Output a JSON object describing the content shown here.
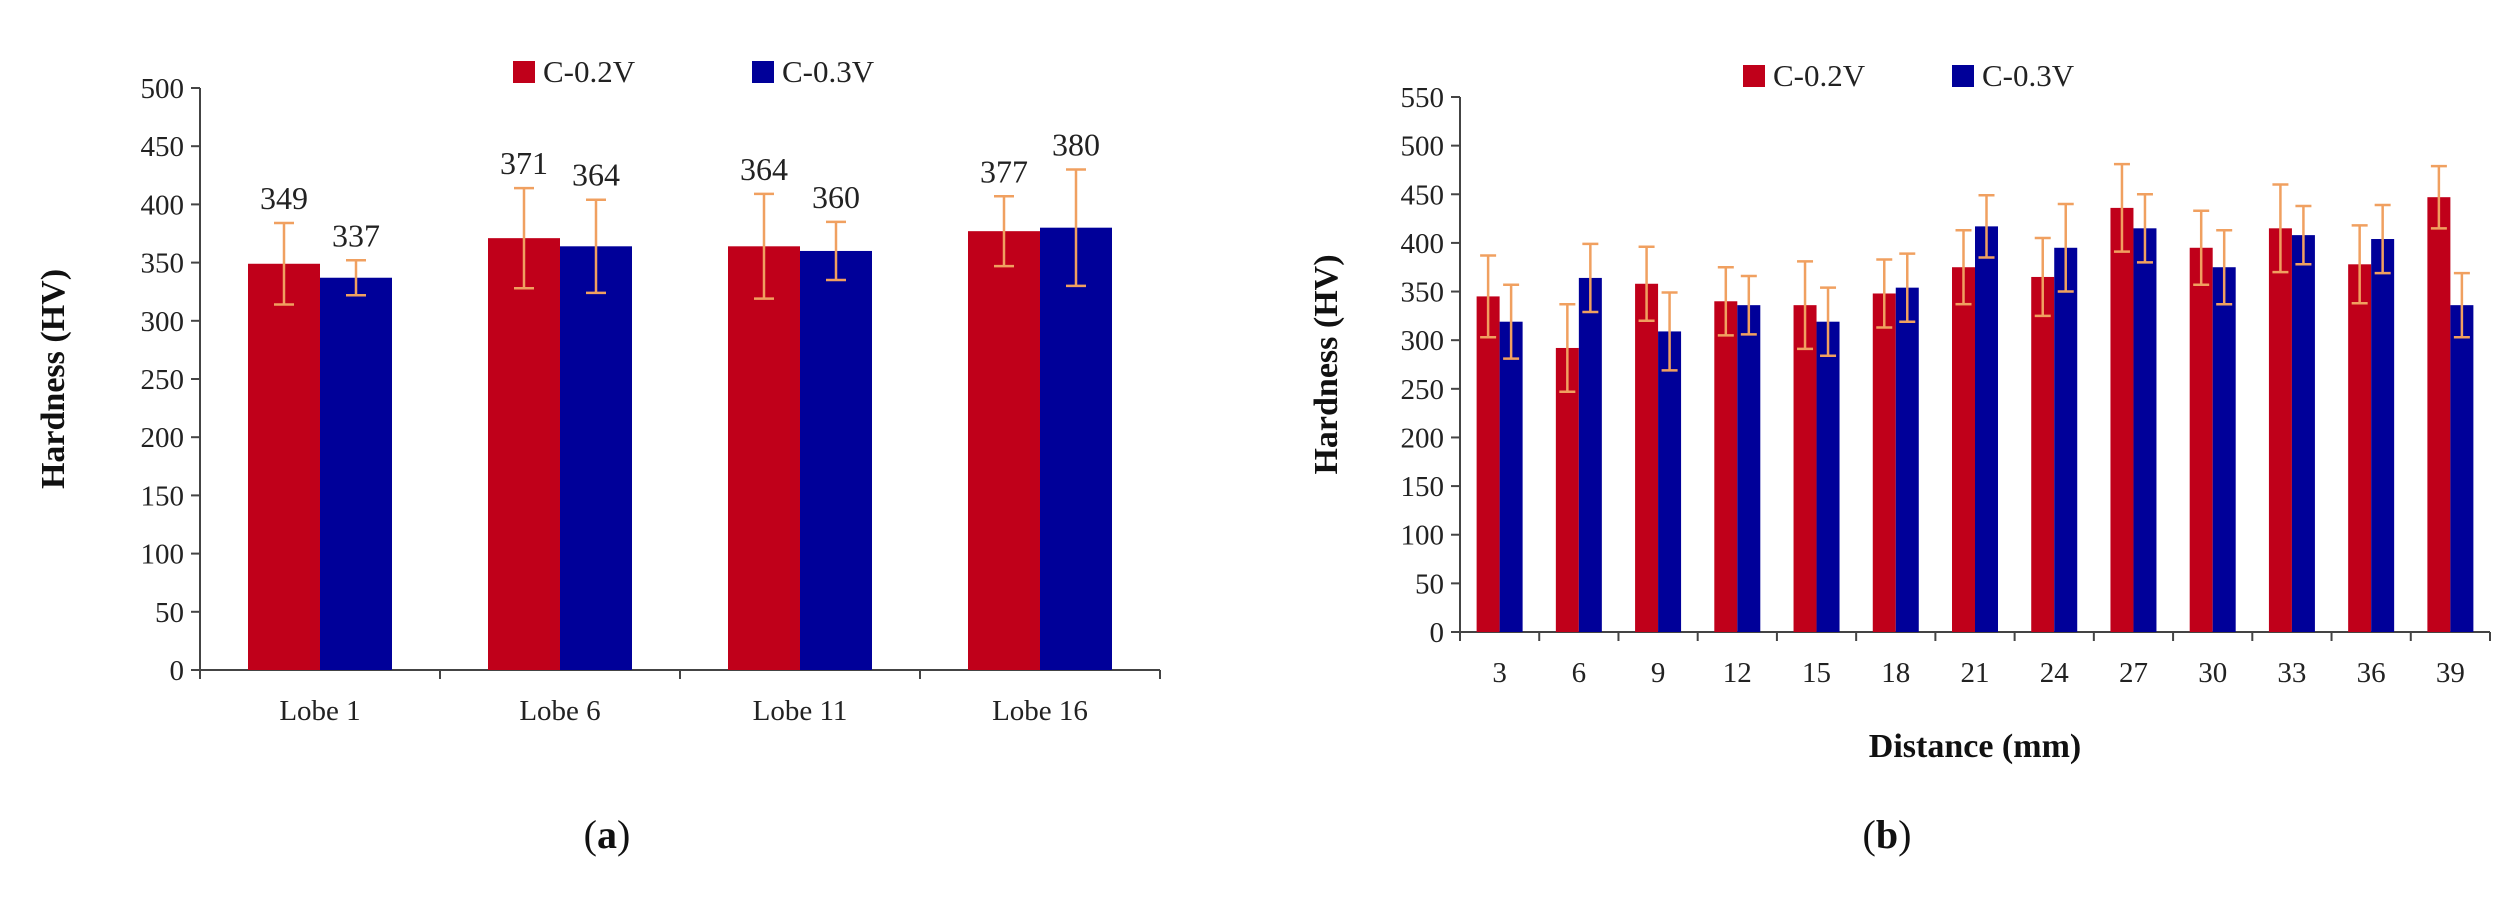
{
  "colors": {
    "series1": "#c0001a",
    "series2": "#000099",
    "error": "#f0a060",
    "axis": "#444444"
  },
  "chart_data": [
    {
      "type": "bar",
      "panel": "a",
      "panel_label": "a",
      "categories": [
        "Lobe 1",
        "Lobe 6",
        "Lobe 11",
        "Lobe 16"
      ],
      "series": [
        {
          "name": "C-0.2V",
          "values": [
            349,
            371,
            364,
            377
          ],
          "errors": [
            35,
            43,
            45,
            30
          ]
        },
        {
          "name": "C-0.3V",
          "values": [
            337,
            364,
            360,
            380
          ],
          "errors": [
            15,
            40,
            25,
            50
          ]
        }
      ],
      "data_labels": true,
      "xlabel": "",
      "ylabel": "Hardness (HV)",
      "ylim": [
        0,
        500
      ],
      "yticks": [
        0,
        50,
        100,
        150,
        200,
        250,
        300,
        350,
        400,
        450,
        500
      ],
      "legend": "top-center"
    },
    {
      "type": "bar",
      "panel": "b",
      "panel_label": "b",
      "categories": [
        "3",
        "6",
        "9",
        "12",
        "15",
        "18",
        "21",
        "24",
        "27",
        "30",
        "33",
        "36",
        "39"
      ],
      "series": [
        {
          "name": "C-0.2V",
          "values": [
            345,
            292,
            358,
            340,
            336,
            348,
            375,
            365,
            436,
            395,
            415,
            378,
            447
          ],
          "errors": [
            42,
            45,
            38,
            35,
            45,
            35,
            38,
            40,
            45,
            38,
            45,
            40,
            32
          ]
        },
        {
          "name": "C-0.3V",
          "values": [
            319,
            364,
            309,
            336,
            319,
            354,
            417,
            395,
            415,
            375,
            408,
            404,
            336
          ],
          "errors": [
            38,
            35,
            40,
            30,
            35,
            35,
            32,
            45,
            35,
            38,
            30,
            35,
            33
          ]
        }
      ],
      "data_labels": false,
      "xlabel": "Distance (mm)",
      "ylabel": "Hardness (HV)",
      "ylim": [
        0,
        550
      ],
      "yticks": [
        0,
        50,
        100,
        150,
        200,
        250,
        300,
        350,
        400,
        450,
        500,
        550
      ],
      "legend": "top-center"
    }
  ]
}
